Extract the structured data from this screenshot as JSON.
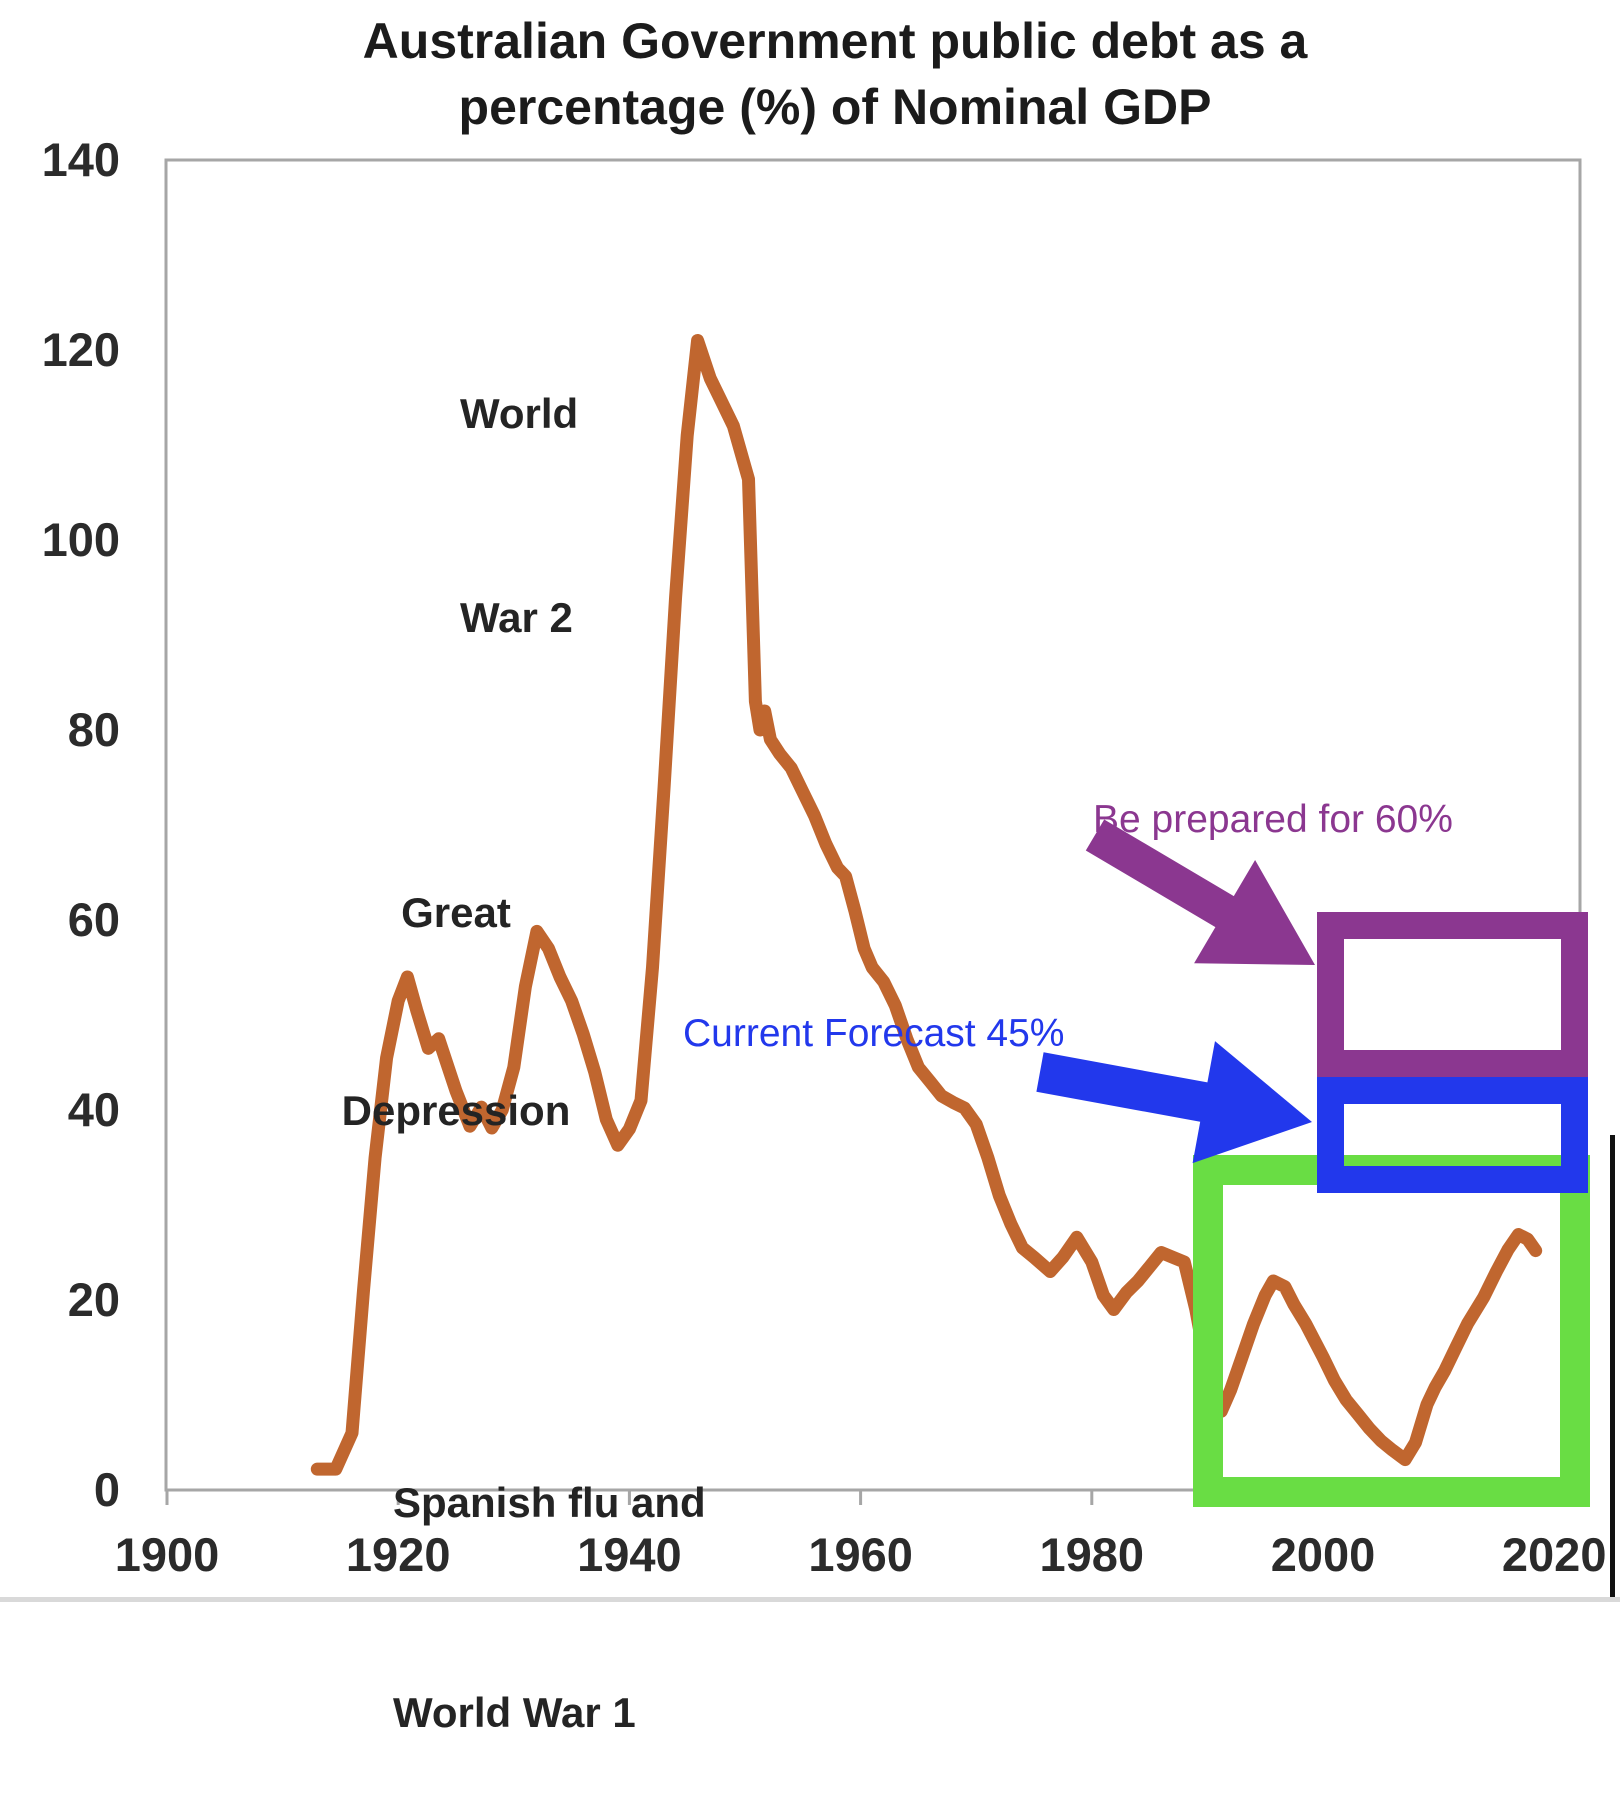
{
  "title": {
    "line1": "Australian Government public debt as a",
    "line2": "percentage (%) of Nominal GDP"
  },
  "colors": {
    "line": "#C0662F",
    "purple": "#8B3790",
    "blue": "#2238EC",
    "green": "#69DD44",
    "axis": "#a6a6a6",
    "tick_text": "#2b2b2b",
    "edge_black": "#111111",
    "bottom_strip": "#d9d9d9"
  },
  "annotations": {
    "ww2": {
      "line1": "World",
      "line2": "War 2"
    },
    "great_depression": {
      "line1": "Great",
      "line2": "Depression"
    },
    "spanish_flu": {
      "line1": "Spanish flu and",
      "line2": "World War 1"
    },
    "be_prepared": {
      "text": "Be prepared for 60%"
    },
    "current_forecast": {
      "text": "Current Forecast 45%"
    }
  },
  "chart_data": {
    "type": "line",
    "title": "Australian Government public debt as a percentage (%) of Nominal GDP",
    "xlim": [
      1900,
      2022
    ],
    "ylim": [
      0,
      140
    ],
    "x_ticks": [
      1900,
      1920,
      1940,
      1960,
      1980,
      2000,
      2020
    ],
    "y_ticks": [
      0,
      20,
      40,
      60,
      80,
      100,
      120,
      140
    ],
    "grid": false,
    "legend": "none",
    "series": [
      {
        "name": "Public debt as % of nominal GDP",
        "points": [
          [
            1913,
            2.2
          ],
          [
            1914.6,
            2.2
          ],
          [
            1916,
            6
          ],
          [
            1917,
            21
          ],
          [
            1918,
            35
          ],
          [
            1919,
            45.5
          ],
          [
            1920,
            51.5
          ],
          [
            1920.8,
            54
          ],
          [
            1921.6,
            50.5
          ],
          [
            1922.6,
            46.5
          ],
          [
            1923.5,
            47.5
          ],
          [
            1925,
            42
          ],
          [
            1926.2,
            38.3
          ],
          [
            1927.2,
            40.3
          ],
          [
            1928.1,
            38.1
          ],
          [
            1929,
            40
          ],
          [
            1930,
            44.5
          ],
          [
            1931,
            53
          ],
          [
            1932,
            58.8
          ],
          [
            1933,
            57
          ],
          [
            1934,
            54
          ],
          [
            1935,
            51.5
          ],
          [
            1936,
            48
          ],
          [
            1937,
            44
          ],
          [
            1938,
            39
          ],
          [
            1939,
            36.3
          ],
          [
            1940,
            38
          ],
          [
            1941,
            41
          ],
          [
            1942,
            55
          ],
          [
            1943,
            74
          ],
          [
            1944,
            94
          ],
          [
            1945,
            111
          ],
          [
            1945.9,
            121
          ],
          [
            1947,
            117
          ],
          [
            1948,
            114.5
          ],
          [
            1949,
            112
          ],
          [
            1950.3,
            106.4
          ],
          [
            1950.9,
            83
          ],
          [
            1951.3,
            80
          ],
          [
            1951.7,
            82
          ],
          [
            1952.2,
            79
          ],
          [
            1953,
            77.5
          ],
          [
            1954,
            76
          ],
          [
            1955,
            73.5
          ],
          [
            1956,
            71
          ],
          [
            1957,
            68
          ],
          [
            1958,
            65.5
          ],
          [
            1958.7,
            64.6
          ],
          [
            1959.5,
            61
          ],
          [
            1960.3,
            57
          ],
          [
            1961,
            55
          ],
          [
            1962,
            53.5
          ],
          [
            1963,
            51
          ],
          [
            1964,
            47.5
          ],
          [
            1965,
            44.5
          ],
          [
            1966,
            43
          ],
          [
            1967,
            41.5
          ],
          [
            1968,
            40.8
          ],
          [
            1969,
            40.2
          ],
          [
            1970,
            38.5
          ],
          [
            1971,
            35
          ],
          [
            1972,
            31
          ],
          [
            1973,
            28
          ],
          [
            1974,
            25.5
          ],
          [
            1975,
            24.5
          ],
          [
            1976.4,
            23
          ],
          [
            1977.5,
            24.5
          ],
          [
            1978.7,
            26.6
          ],
          [
            1980,
            24
          ],
          [
            1981,
            20.5
          ],
          [
            1981.9,
            19
          ],
          [
            1983,
            20.8
          ],
          [
            1984,
            22
          ],
          [
            1985,
            23.5
          ],
          [
            1986,
            25
          ],
          [
            1987,
            24.5
          ],
          [
            1988,
            24
          ],
          [
            1989,
            19
          ],
          [
            1990,
            12.5
          ],
          [
            1991.2,
            8.3
          ],
          [
            1992,
            10.5
          ],
          [
            1993,
            14
          ],
          [
            1994,
            17.5
          ],
          [
            1995,
            20.5
          ],
          [
            1995.7,
            22
          ],
          [
            1996.7,
            21.4
          ],
          [
            1997.5,
            19.5
          ],
          [
            1998.5,
            17.5
          ],
          [
            2000,
            14
          ],
          [
            2001,
            11.5
          ],
          [
            2002,
            9.5
          ],
          [
            2003,
            8
          ],
          [
            2004,
            6.5
          ],
          [
            2005,
            5.2
          ],
          [
            2006,
            4.2
          ],
          [
            2007.1,
            3.2
          ],
          [
            2008,
            5
          ],
          [
            2009,
            9
          ],
          [
            2009.7,
            10.8
          ],
          [
            2010.5,
            12.5
          ],
          [
            2011.5,
            15
          ],
          [
            2012.5,
            17.5
          ],
          [
            2013.9,
            20.3
          ],
          [
            2015,
            23
          ],
          [
            2016,
            25.3
          ],
          [
            2016.9,
            26.9
          ],
          [
            2017.7,
            26.4
          ],
          [
            2018.4,
            25.2
          ]
        ]
      }
    ],
    "text_annotations": [
      {
        "text": "World War 2",
        "near_year": 1936,
        "near_value": 120
      },
      {
        "text": "Great Depression",
        "near_year": 1925,
        "near_value": 68
      },
      {
        "text": "Spanish flu and World War 1",
        "near_year": 1922,
        "near_value": 14
      },
      {
        "text": "Be prepared for 60%",
        "color_key": "purple",
        "points_to_level": 60
      },
      {
        "text": "Current Forecast 45%",
        "color_key": "blue",
        "points_to_level": 45
      }
    ]
  }
}
